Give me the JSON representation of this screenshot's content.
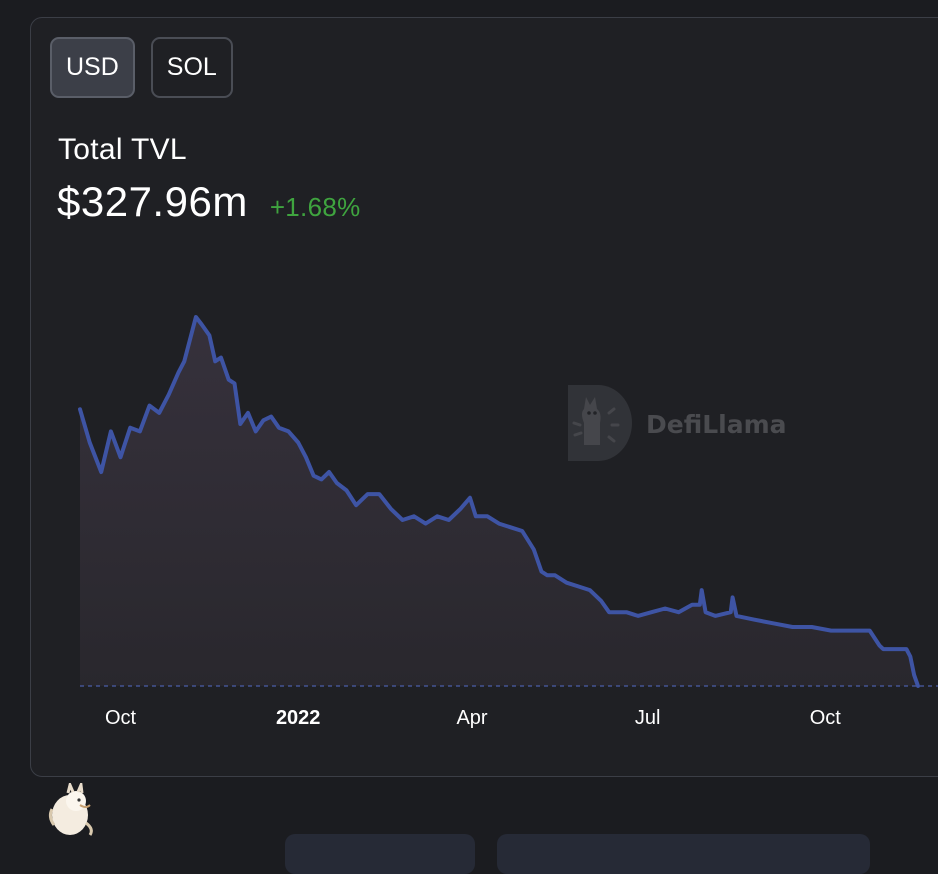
{
  "denomination": {
    "usd_label": "USD",
    "sol_label": "SOL",
    "selected": "USD"
  },
  "summary": {
    "label": "Total TVL",
    "value": "$327.96m",
    "change": "+1.68%"
  },
  "watermark": {
    "brand": "DefiLlama",
    "icon": "llama-logo-icon"
  },
  "colors": {
    "line": "#3e54a4",
    "change_positive": "#3fa43f",
    "background": "#1f2024"
  },
  "chart_data": {
    "type": "area",
    "title": "",
    "xlabel": "",
    "ylabel": "",
    "x_ticks": [
      "Oct",
      "2022",
      "Apr",
      "Jul",
      "Oct"
    ],
    "x_range": [
      "2021-09-10",
      "2022-11-18"
    ],
    "ylim": [
      0,
      1000
    ],
    "grid": false,
    "legend": "none",
    "series": [
      {
        "name": "",
        "x": [
          "2021-09-10",
          "2021-09-15",
          "2021-09-21",
          "2021-09-26",
          "2021-10-01",
          "2021-10-06",
          "2021-10-11",
          "2021-10-16",
          "2021-10-21",
          "2021-10-26",
          "2021-10-31",
          "2021-11-03",
          "2021-11-06",
          "2021-11-09",
          "2021-11-12",
          "2021-11-16",
          "2021-11-19",
          "2021-11-22",
          "2021-11-26",
          "2021-11-29",
          "2021-12-02",
          "2021-12-06",
          "2021-12-10",
          "2021-12-14",
          "2021-12-18",
          "2021-12-22",
          "2021-12-27",
          "2022-01-01",
          "2022-01-05",
          "2022-01-09",
          "2022-01-13",
          "2022-01-17",
          "2022-01-21",
          "2022-01-26",
          "2022-01-31",
          "2022-02-06",
          "2022-02-12",
          "2022-02-18",
          "2022-02-24",
          "2022-03-02",
          "2022-03-08",
          "2022-03-14",
          "2022-03-20",
          "2022-03-26",
          "2022-03-31",
          "2022-04-03",
          "2022-04-09",
          "2022-04-15",
          "2022-04-21",
          "2022-04-27",
          "2022-05-03",
          "2022-05-07",
          "2022-05-10",
          "2022-05-14",
          "2022-05-20",
          "2022-05-26",
          "2022-06-01",
          "2022-06-07",
          "2022-06-11",
          "2022-06-14",
          "2022-06-20",
          "2022-06-26",
          "2022-07-03",
          "2022-07-10",
          "2022-07-17",
          "2022-07-24",
          "2022-07-28",
          "2022-07-29",
          "2022-07-31",
          "2022-08-05",
          "2022-08-13",
          "2022-08-14",
          "2022-08-16",
          "2022-08-25",
          "2022-09-04",
          "2022-09-14",
          "2022-09-24",
          "2022-10-04",
          "2022-10-14",
          "2022-10-24",
          "2022-10-29",
          "2022-10-31",
          "2022-11-06",
          "2022-11-12",
          "2022-11-14",
          "2022-11-16",
          "2022-11-18"
        ],
        "values": [
          750,
          660,
          580,
          690,
          620,
          700,
          690,
          760,
          740,
          790,
          850,
          880,
          940,
          1000,
          980,
          950,
          880,
          890,
          830,
          820,
          710,
          740,
          690,
          720,
          730,
          700,
          690,
          660,
          620,
          570,
          560,
          580,
          550,
          530,
          490,
          520,
          520,
          480,
          450,
          460,
          440,
          460,
          450,
          480,
          510,
          460,
          460,
          440,
          430,
          420,
          370,
          310,
          300,
          300,
          280,
          270,
          260,
          230,
          200,
          200,
          200,
          190,
          200,
          210,
          200,
          220,
          220,
          260,
          200,
          190,
          200,
          240,
          190,
          180,
          170,
          160,
          160,
          150,
          150,
          150,
          110,
          100,
          100,
          100,
          80,
          30,
          0
        ]
      }
    ]
  }
}
